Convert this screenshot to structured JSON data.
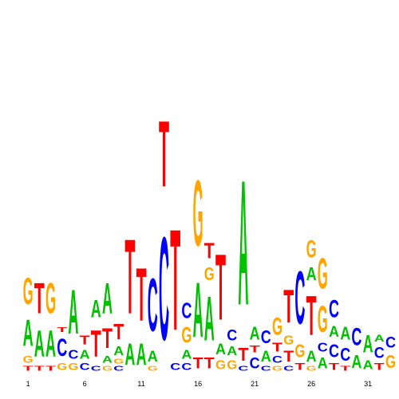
{
  "colors": {
    "A": "#00c000",
    "C": "#0000ff",
    "G": "#ffa500",
    "T": "#ff0000"
  },
  "axis": {
    "tick_labels": [
      "1",
      "6",
      "11",
      "16",
      "21",
      "26",
      "31"
    ],
    "tick_positions": [
      1,
      6,
      11,
      16,
      21,
      26,
      31
    ]
  },
  "motif": {
    "length": 33,
    "columns": [
      [
        [
          "T",
          0.02
        ],
        [
          "G",
          0.03
        ],
        [
          "A",
          0.12
        ],
        [
          "G",
          0.12
        ]
      ],
      [
        [
          "T",
          0.02
        ],
        [
          "A",
          0.12
        ],
        [
          "T",
          0.14
        ]
      ],
      [
        [
          "T",
          0.02
        ],
        [
          "A",
          0.12
        ],
        [
          "G",
          0.14
        ]
      ],
      [
        [
          "G",
          0.03
        ],
        [
          "C",
          0.08
        ],
        [
          "T",
          0.02
        ]
      ],
      [
        [
          "G",
          0.03
        ],
        [
          "C",
          0.04
        ],
        [
          "A",
          0.2
        ]
      ],
      [
        [
          "C",
          0.03
        ],
        [
          "A",
          0.04
        ],
        [
          "T",
          0.04
        ]
      ],
      [
        [
          "C",
          0.02
        ],
        [
          "T",
          0.12
        ],
        [
          "A",
          0.08
        ]
      ],
      [
        [
          "G",
          0.02
        ],
        [
          "A",
          0.03
        ],
        [
          "T",
          0.09
        ],
        [
          "A",
          0.14
        ]
      ],
      [
        [
          "C",
          0.02
        ],
        [
          "G",
          0.02
        ],
        [
          "A",
          0.04
        ],
        [
          "T",
          0.07
        ]
      ],
      [
        [
          "A",
          0.1
        ],
        [
          "T",
          0.34
        ]
      ],
      [
        [
          "A",
          0.1
        ],
        [
          "T",
          0.24
        ]
      ],
      [
        [
          "G",
          0.02
        ],
        [
          "A",
          0.05
        ],
        [
          "C",
          0.24
        ]
      ],
      [
        [
          "C",
          0.47
        ],
        [
          "T",
          0.3
        ]
      ],
      [
        [
          "C",
          0.03
        ],
        [
          "T",
          0.46
        ]
      ],
      [
        [
          "C",
          0.03
        ],
        [
          "A",
          0.04
        ],
        [
          "G",
          0.07
        ],
        [
          "C",
          0.07
        ]
      ],
      [
        [
          "T",
          0.05
        ],
        [
          "A",
          0.25
        ],
        [
          "G",
          0.3
        ]
      ],
      [
        [
          "T",
          0.05
        ],
        [
          "A",
          0.2
        ],
        [
          "G",
          0.06
        ],
        [
          "T",
          0.07
        ]
      ],
      [
        [
          "G",
          0.04
        ],
        [
          "A",
          0.05
        ],
        [
          "T",
          0.3
        ]
      ],
      [
        [
          "G",
          0.04
        ],
        [
          "A",
          0.04
        ],
        [
          "C",
          0.05
        ]
      ],
      [
        [
          "C",
          0.02
        ],
        [
          "T",
          0.06
        ],
        [
          "A",
          0.57
        ]
      ],
      [
        [
          "C",
          0.05
        ],
        [
          "T",
          0.03
        ],
        [
          "A",
          0.06
        ]
      ],
      [
        [
          "C",
          0.02
        ],
        [
          "A",
          0.05
        ],
        [
          "C",
          0.06
        ]
      ],
      [
        [
          "G",
          0.02
        ],
        [
          "C",
          0.03
        ],
        [
          "T",
          0.04
        ],
        [
          "G",
          0.08
        ]
      ],
      [
        [
          "C",
          0.02
        ],
        [
          "T",
          0.05
        ],
        [
          "G",
          0.04
        ],
        [
          "T",
          0.15
        ]
      ],
      [
        [
          "T",
          0.03
        ],
        [
          "G",
          0.06
        ],
        [
          "C",
          0.24
        ]
      ],
      [
        [
          "G",
          0.02
        ],
        [
          "A",
          0.05
        ],
        [
          "T",
          0.18
        ],
        [
          "A",
          0.06
        ],
        [
          "G",
          0.08
        ]
      ],
      [
        [
          "A",
          0.05
        ],
        [
          "C",
          0.04
        ],
        [
          "G",
          0.12
        ],
        [
          "G",
          0.14
        ]
      ],
      [
        [
          "T",
          0.03
        ],
        [
          "C",
          0.06
        ],
        [
          "A",
          0.05
        ],
        [
          "C",
          0.08
        ]
      ],
      [
        [
          "T",
          0.02
        ],
        [
          "C",
          0.06
        ],
        [
          "A",
          0.06
        ]
      ],
      [
        [
          "A",
          0.06
        ],
        [
          "C",
          0.08
        ]
      ],
      [
        [
          "A",
          0.04
        ],
        [
          "A",
          0.08
        ]
      ],
      [
        [
          "T",
          0.03
        ],
        [
          "C",
          0.05
        ],
        [
          "A",
          0.03
        ]
      ],
      [
        [
          "G",
          0.06
        ],
        [
          "C",
          0.05
        ]
      ]
    ]
  }
}
